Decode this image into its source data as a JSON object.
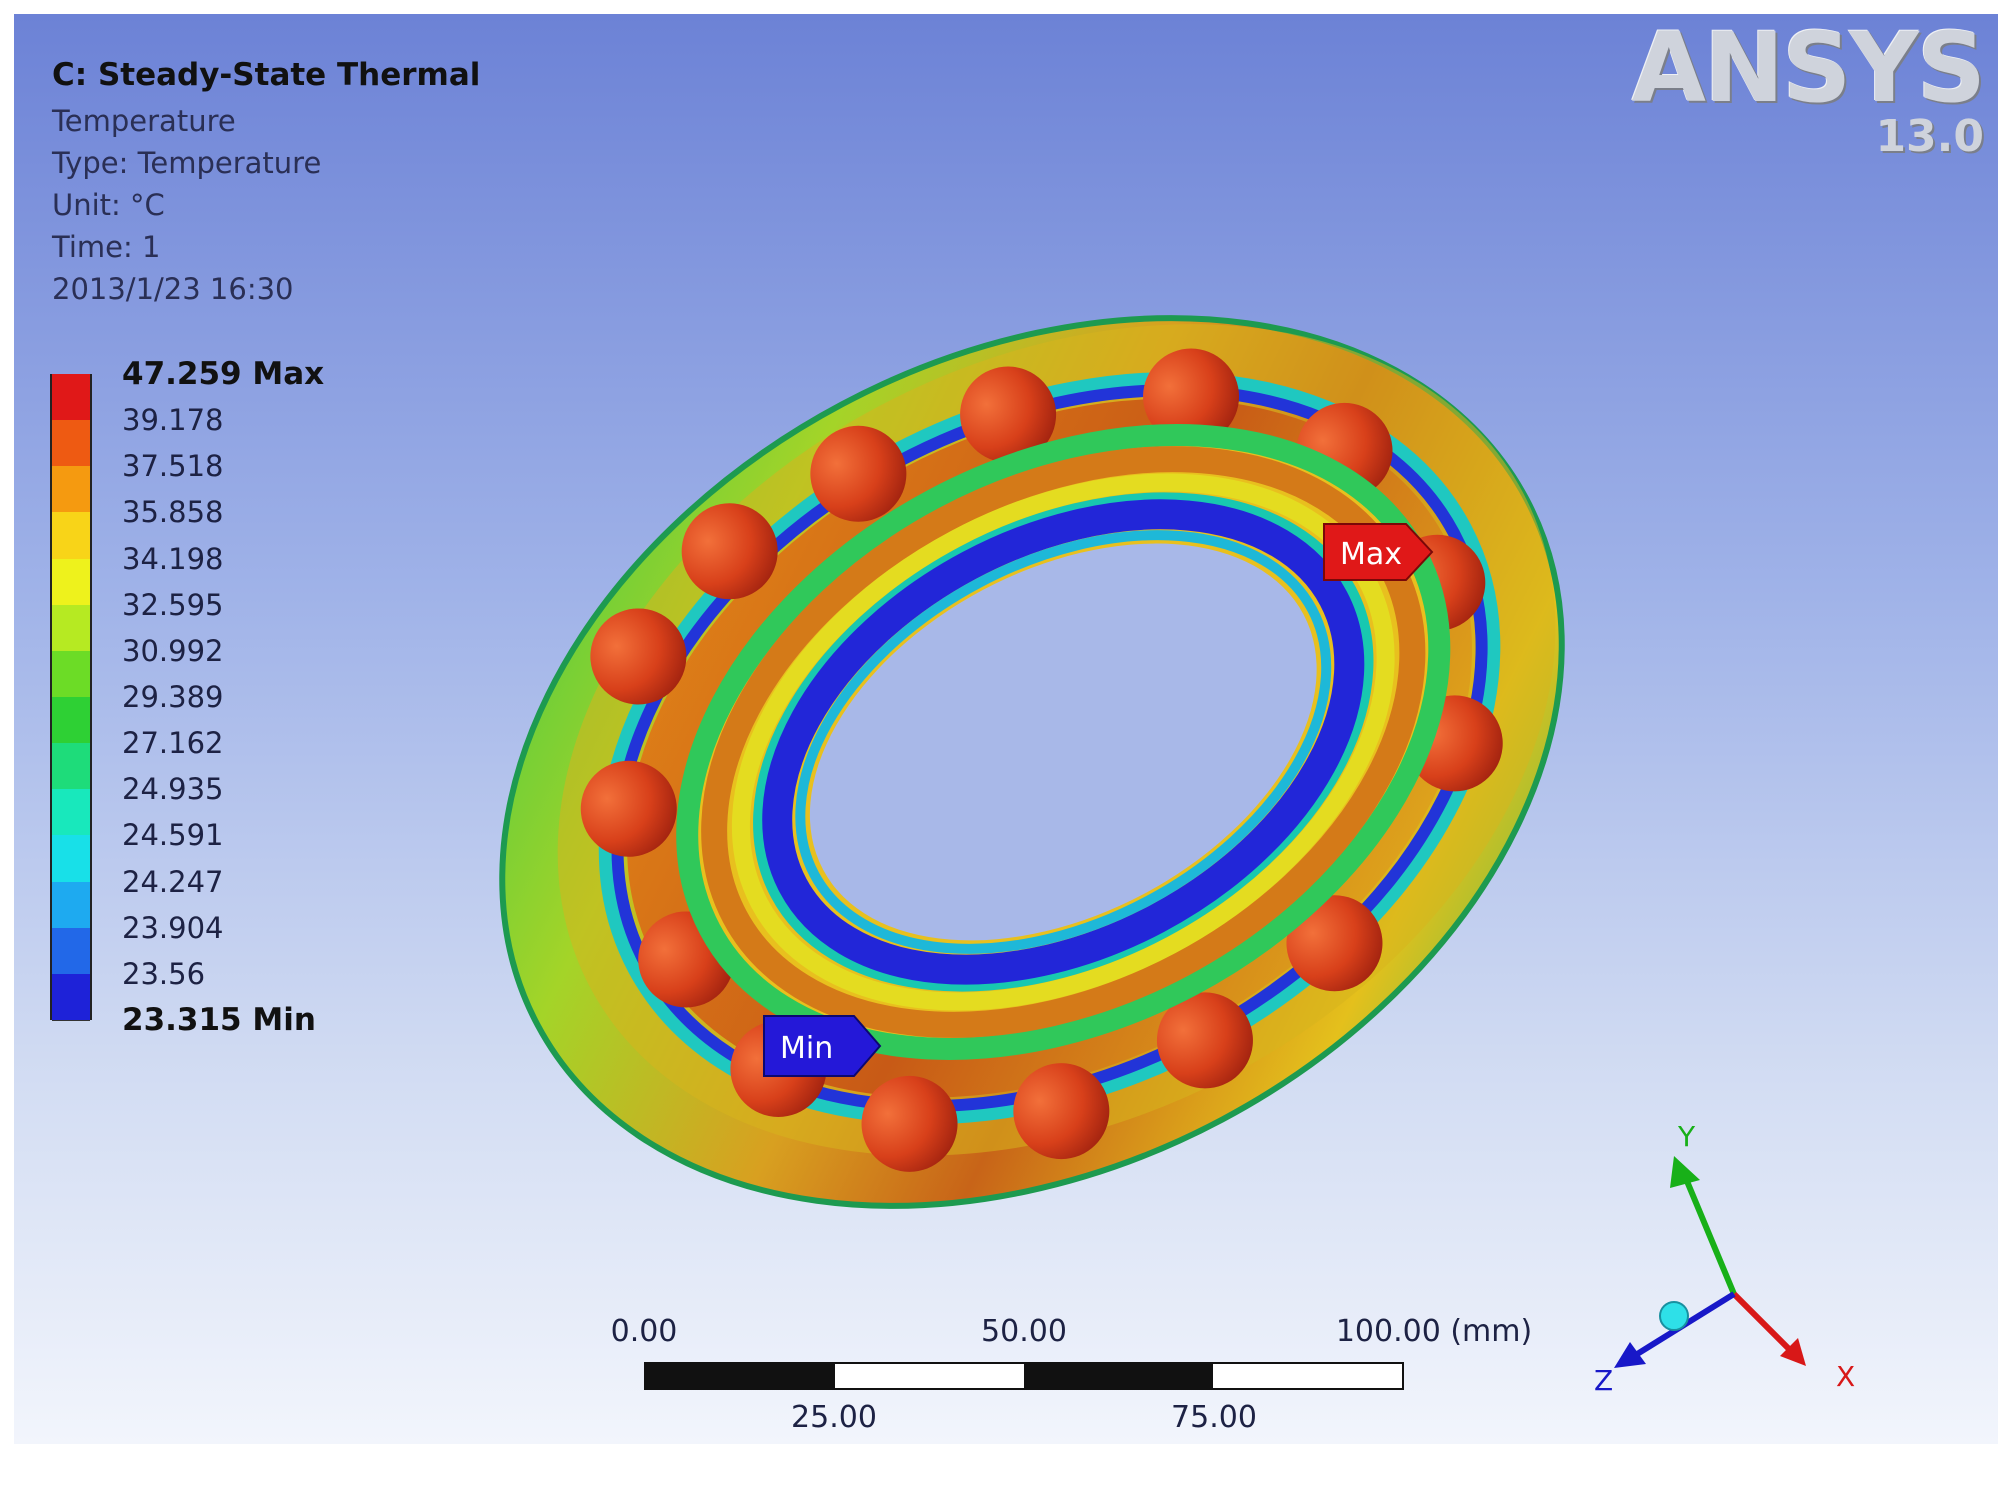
{
  "app": {
    "logo_text": "ANSYS",
    "version": "13.0"
  },
  "info": {
    "title": "C: Steady-State Thermal",
    "result": "Temperature",
    "type": "Type: Temperature",
    "unit": "Unit: °C",
    "time": "Time: 1",
    "date": "2013/1/23 16:30"
  },
  "legend": {
    "levels": [
      {
        "label": "47.259 Max",
        "color": "#e01818",
        "bold": true
      },
      {
        "label": "39.178",
        "color": "#ee5a12"
      },
      {
        "label": "37.518",
        "color": "#f59a10"
      },
      {
        "label": "35.858",
        "color": "#f8d418"
      },
      {
        "label": "34.198",
        "color": "#eef21c"
      },
      {
        "label": "32.595",
        "color": "#b6ea22"
      },
      {
        "label": "30.992",
        "color": "#6cdc26"
      },
      {
        "label": "29.389",
        "color": "#2ed034"
      },
      {
        "label": "27.162",
        "color": "#1edc7a"
      },
      {
        "label": "24.935",
        "color": "#18e8bc"
      },
      {
        "label": "24.591",
        "color": "#18e0e8"
      },
      {
        "label": "24.247",
        "color": "#1eaaf0"
      },
      {
        "label": "23.904",
        "color": "#2268e8"
      },
      {
        "label": "23.56",
        "color": "#1e22d8"
      },
      {
        "label": "23.315 Min",
        "color": "#1e22d8",
        "bold": true
      }
    ]
  },
  "probes": {
    "max_label": "Max",
    "min_label": "Min",
    "max_color": "#e01818",
    "min_color": "#2418d8"
  },
  "scale_bar": {
    "top_labels": [
      "0.00",
      "50.00",
      "100.00 (mm)"
    ],
    "bottom_labels": [
      "25.00",
      "75.00"
    ]
  },
  "triad": {
    "x_label": "X",
    "y_label": "Y",
    "z_label": "Z",
    "x_color": "#d81818",
    "y_color": "#18b018",
    "z_color": "#1818c8"
  }
}
